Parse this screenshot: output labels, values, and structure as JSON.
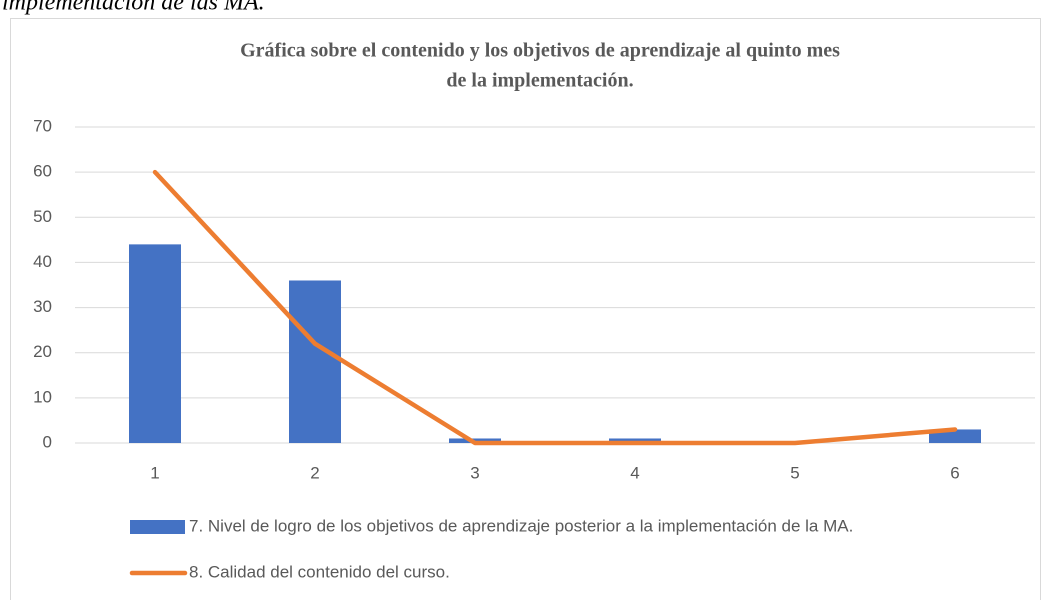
{
  "chart_data": {
    "type": "combo",
    "caption": "implementación de las MA.",
    "title": [
      "Gráfica sobre el contenido y los objetivos de aprendizaje al quinto mes",
      "de la implementación."
    ],
    "categories": [
      "1",
      "2",
      "3",
      "4",
      "5",
      "6"
    ],
    "series": [
      {
        "name": "7. Nivel de logro de los objetivos de aprendizaje posterior a la implementación de la MA.",
        "type": "bar",
        "color": "#4472c4",
        "values": [
          44,
          36,
          1,
          1,
          0,
          3
        ]
      },
      {
        "name": "8. Calidad del contenido del curso.",
        "type": "line",
        "color": "#ed7d31",
        "values": [
          60,
          22,
          0,
          0,
          0,
          3
        ]
      }
    ],
    "ylim": [
      0,
      70
    ],
    "yticks": [
      0,
      10,
      20,
      30,
      40,
      50,
      60,
      70
    ],
    "grid": true,
    "legend": "bottom"
  }
}
